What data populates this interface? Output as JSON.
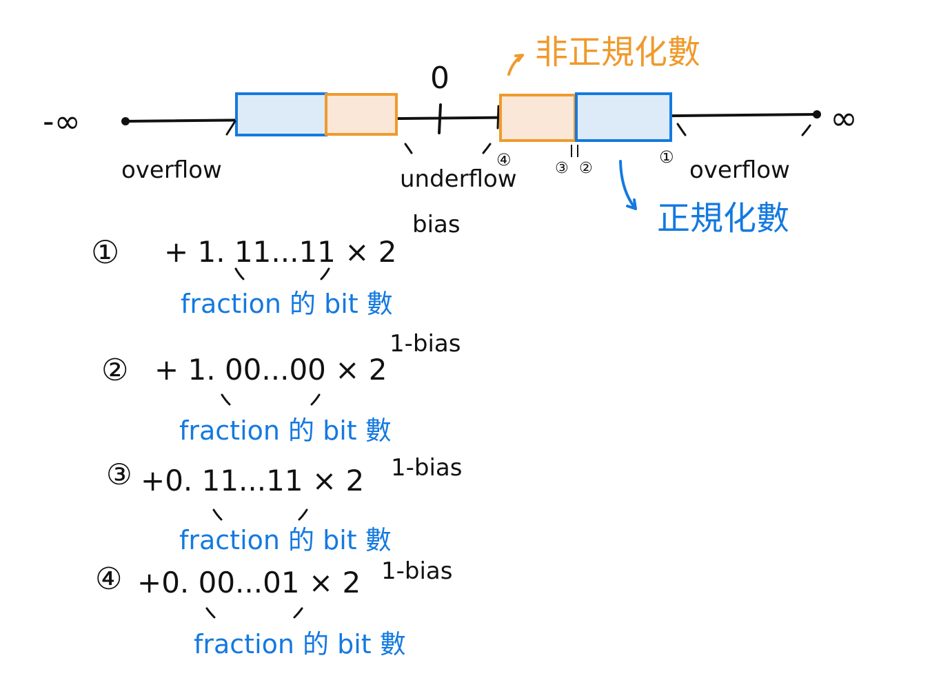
{
  "colors": {
    "ink": "#111111",
    "normalized": "#1479e0",
    "normalized_fill": "#ddeaf7",
    "denormalized": "#ef9a2c",
    "denormalized_fill": "#fbe7d7"
  },
  "number_line": {
    "neg_infinity": "-∞",
    "pos_infinity": "∞",
    "zero": "0",
    "overflow_left": "overflow",
    "overflow_right": "overflow",
    "underflow": "underflow",
    "marker_1": "①",
    "marker_2": "②",
    "marker_3": "③",
    "marker_4": "④"
  },
  "labels": {
    "denormalized": "非正規化數",
    "normalized": "正規化數"
  },
  "formulas": [
    {
      "marker": "①",
      "expression": "+ 1. 11...11 × 2",
      "exponent": "bias",
      "note": "fraction 的 bit 數"
    },
    {
      "marker": "②",
      "expression": "+ 1. 00...00 × 2",
      "exponent": "1-bias",
      "note": "fraction 的 bit 數"
    },
    {
      "marker": "③",
      "expression": "+0. 11...11 × 2",
      "exponent": "1-bias",
      "note": "fraction 的 bit 數"
    },
    {
      "marker": "④",
      "expression": "+0. 00...01 × 2",
      "exponent": "1-bias",
      "note": "fraction 的 bit 數"
    }
  ]
}
